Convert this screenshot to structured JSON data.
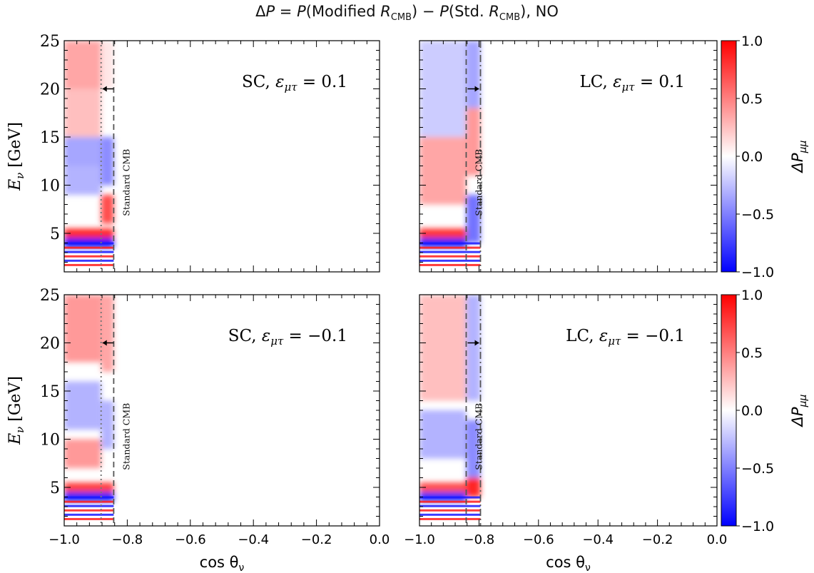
{
  "figure": {
    "title_parts": {
      "delta": "Δ",
      "p": "P",
      "eq": " = ",
      "p2": "P",
      "open1": "(",
      "modified": "Modified ",
      "r": "R",
      "sub_cmb": "CMB",
      "close_minus": ") − ",
      "p3": "P",
      "open2": "(",
      "std": "Std. ",
      "r2": "R",
      "sub_cmb2": "CMB",
      "close_no": "), NO"
    }
  },
  "colorbar": {
    "label_main": "ΔP",
    "label_sub": "μμ",
    "ticks": [
      "1.0",
      "0.5",
      "0.0",
      "−0.5",
      "−1.0"
    ],
    "tick_values": [
      1.0,
      0.5,
      0.0,
      -0.5,
      -1.0
    ],
    "colormap": "bwr",
    "colors": {
      "low": "#0000ff",
      "mid": "#ffffff",
      "high": "#ff0000"
    }
  },
  "axes_common": {
    "xlabel_main": "cos θ",
    "xlabel_sub": "ν",
    "ylabel_main": "E",
    "ylabel_sub": "ν",
    "ylabel_unit": " [GeV]",
    "xticks": [
      "−1.0",
      "−0.8",
      "−0.6",
      "−0.4",
      "−0.2",
      "0.0"
    ],
    "yticks": [
      "5",
      "10",
      "15",
      "20",
      "25"
    ],
    "annotation_label": "Standard CMB"
  },
  "chart_data": [
    {
      "type": "heatmap",
      "panel": "top-left",
      "label_prefix": "SC, ",
      "label_eps": "ε",
      "label_sub": "μτ",
      "label_value": " = 0.1",
      "epsilon": 0.1,
      "crust": "SC",
      "x_range": [
        -1.0,
        0.0
      ],
      "y_range": [
        1,
        25
      ],
      "standard_cmb_cos": -0.843,
      "modified_cmb_cos": -0.883,
      "arrow": "left",
      "bands": [
        {
          "x": [
            -1.0,
            -0.883
          ],
          "y": [
            20,
            25
          ],
          "dp": 0.35
        },
        {
          "x": [
            -1.0,
            -0.883
          ],
          "y": [
            15,
            20
          ],
          "dp": 0.25
        },
        {
          "x": [
            -1.0,
            -0.883
          ],
          "y": [
            12,
            15
          ],
          "dp": -0.35
        },
        {
          "x": [
            -1.0,
            -0.883
          ],
          "y": [
            9,
            12
          ],
          "dp": -0.3
        },
        {
          "x": [
            -0.883,
            -0.843
          ],
          "y": [
            20,
            25
          ],
          "dp": 0.1
        },
        {
          "x": [
            -0.883,
            -0.843
          ],
          "y": [
            10,
            15
          ],
          "dp": -0.45
        },
        {
          "x": [
            -0.883,
            -0.843
          ],
          "y": [
            6,
            9
          ],
          "dp": 0.7
        },
        {
          "x": [
            -1.0,
            -0.843
          ],
          "y": [
            4.5,
            5.5
          ],
          "dp": 0.85
        },
        {
          "x": [
            -1.0,
            -0.843
          ],
          "y": [
            3.5,
            4.5
          ],
          "dp": -0.9
        }
      ]
    },
    {
      "type": "heatmap",
      "panel": "top-right",
      "label_prefix": "LC, ",
      "label_eps": "ε",
      "label_sub": "μτ",
      "label_value": " = 0.1",
      "epsilon": 0.1,
      "crust": "LC",
      "x_range": [
        -1.0,
        0.0
      ],
      "y_range": [
        1,
        25
      ],
      "standard_cmb_cos": -0.843,
      "modified_cmb_cos": -0.795,
      "arrow": "right",
      "bands": [
        {
          "x": [
            -1.0,
            -0.843
          ],
          "y": [
            15,
            25
          ],
          "dp": -0.2
        },
        {
          "x": [
            -1.0,
            -0.843
          ],
          "y": [
            8,
            15
          ],
          "dp": 0.35
        },
        {
          "x": [
            -0.843,
            -0.795
          ],
          "y": [
            18,
            25
          ],
          "dp": -0.35
        },
        {
          "x": [
            -0.843,
            -0.795
          ],
          "y": [
            11,
            18
          ],
          "dp": 0.4
        },
        {
          "x": [
            -0.843,
            -0.795
          ],
          "y": [
            4,
            9
          ],
          "dp": -0.55
        },
        {
          "x": [
            -1.0,
            -0.843
          ],
          "y": [
            4.5,
            5.5
          ],
          "dp": 0.8
        },
        {
          "x": [
            -1.0,
            -0.843
          ],
          "y": [
            3.5,
            4.5
          ],
          "dp": -0.85
        }
      ]
    },
    {
      "type": "heatmap",
      "panel": "bottom-left",
      "label_prefix": "SC, ",
      "label_eps": "ε",
      "label_sub": "μτ",
      "label_value": " = −0.1",
      "epsilon": -0.1,
      "crust": "SC",
      "x_range": [
        -1.0,
        0.0
      ],
      "y_range": [
        1,
        25
      ],
      "standard_cmb_cos": -0.843,
      "modified_cmb_cos": -0.883,
      "arrow": "left",
      "bands": [
        {
          "x": [
            -1.0,
            -0.883
          ],
          "y": [
            18,
            25
          ],
          "dp": 0.4
        },
        {
          "x": [
            -1.0,
            -0.883
          ],
          "y": [
            11,
            16
          ],
          "dp": -0.3
        },
        {
          "x": [
            -1.0,
            -0.883
          ],
          "y": [
            7,
            10
          ],
          "dp": 0.4
        },
        {
          "x": [
            -0.883,
            -0.843
          ],
          "y": [
            17,
            25
          ],
          "dp": 0.35
        },
        {
          "x": [
            -0.883,
            -0.843
          ],
          "y": [
            9,
            14
          ],
          "dp": -0.3
        },
        {
          "x": [
            -1.0,
            -0.843
          ],
          "y": [
            4.5,
            5.5
          ],
          "dp": 0.75
        },
        {
          "x": [
            -1.0,
            -0.843
          ],
          "y": [
            3.5,
            4.5
          ],
          "dp": -0.85
        }
      ]
    },
    {
      "type": "heatmap",
      "panel": "bottom-right",
      "label_prefix": "LC, ",
      "label_eps": "ε",
      "label_sub": "μτ",
      "label_value": " = −0.1",
      "epsilon": -0.1,
      "crust": "LC",
      "x_range": [
        -1.0,
        0.0
      ],
      "y_range": [
        1,
        25
      ],
      "standard_cmb_cos": -0.843,
      "modified_cmb_cos": -0.795,
      "arrow": "right",
      "bands": [
        {
          "x": [
            -1.0,
            -0.843
          ],
          "y": [
            14,
            25
          ],
          "dp": 0.25
        },
        {
          "x": [
            -1.0,
            -0.843
          ],
          "y": [
            8,
            13
          ],
          "dp": -0.3
        },
        {
          "x": [
            -0.843,
            -0.795
          ],
          "y": [
            14,
            25
          ],
          "dp": -0.3
        },
        {
          "x": [
            -0.843,
            -0.795
          ],
          "y": [
            6,
            12
          ],
          "dp": -0.45
        },
        {
          "x": [
            -0.843,
            -0.795
          ],
          "y": [
            4,
            6
          ],
          "dp": 0.85
        },
        {
          "x": [
            -1.0,
            -0.843
          ],
          "y": [
            4.5,
            5.5
          ],
          "dp": 0.7
        },
        {
          "x": [
            -1.0,
            -0.843
          ],
          "y": [
            3.5,
            4.5
          ],
          "dp": -0.8
        }
      ]
    }
  ]
}
